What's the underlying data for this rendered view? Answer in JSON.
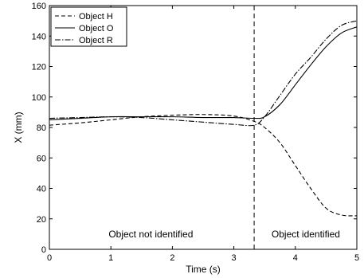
{
  "chart_data": {
    "type": "line",
    "xlabel": "Time (s)",
    "ylabel": "X (mm)",
    "xlim": [
      0,
      5
    ],
    "ylim": [
      0,
      160
    ],
    "xticks": [
      0,
      1,
      2,
      3,
      4,
      5
    ],
    "yticks": [
      0,
      20,
      40,
      60,
      80,
      100,
      120,
      140,
      160
    ],
    "grid": false,
    "legend_position": "top-left",
    "vertical_marker_x": 3.33,
    "annotations": [
      {
        "text": "Object not identified",
        "x": 1.65,
        "y": 10
      },
      {
        "text": "Object identified",
        "x": 4.17,
        "y": 10
      }
    ],
    "series": [
      {
        "name": "Object H",
        "style": "dashed",
        "x": [
          0,
          0.5,
          1.0,
          1.5,
          2.0,
          2.5,
          3.0,
          3.33,
          3.5,
          3.75,
          4.0,
          4.25,
          4.5,
          4.75,
          5.0
        ],
        "y": [
          81.5,
          83,
          85,
          87,
          88,
          88.5,
          87.5,
          84,
          80,
          70,
          55,
          40,
          27,
          22.5,
          22
        ]
      },
      {
        "name": "Object O",
        "style": "solid",
        "x": [
          0,
          0.5,
          1.0,
          1.5,
          2.0,
          2.5,
          3.0,
          3.33,
          3.5,
          3.75,
          4.0,
          4.25,
          4.5,
          4.75,
          5.0
        ],
        "y": [
          85,
          86,
          87,
          87,
          87,
          86.5,
          86.5,
          86,
          87,
          95,
          108,
          121,
          133,
          142,
          146
        ]
      },
      {
        "name": "Object R",
        "style": "dashdot",
        "x": [
          0,
          0.5,
          1.0,
          1.5,
          2.0,
          2.5,
          3.0,
          3.33,
          3.5,
          3.75,
          4.0,
          4.25,
          4.5,
          4.75,
          5.0
        ],
        "y": [
          86,
          86.5,
          87,
          86.5,
          85,
          83.5,
          82,
          81.5,
          87,
          101,
          115,
          126,
          138,
          147,
          150
        ]
      }
    ]
  }
}
